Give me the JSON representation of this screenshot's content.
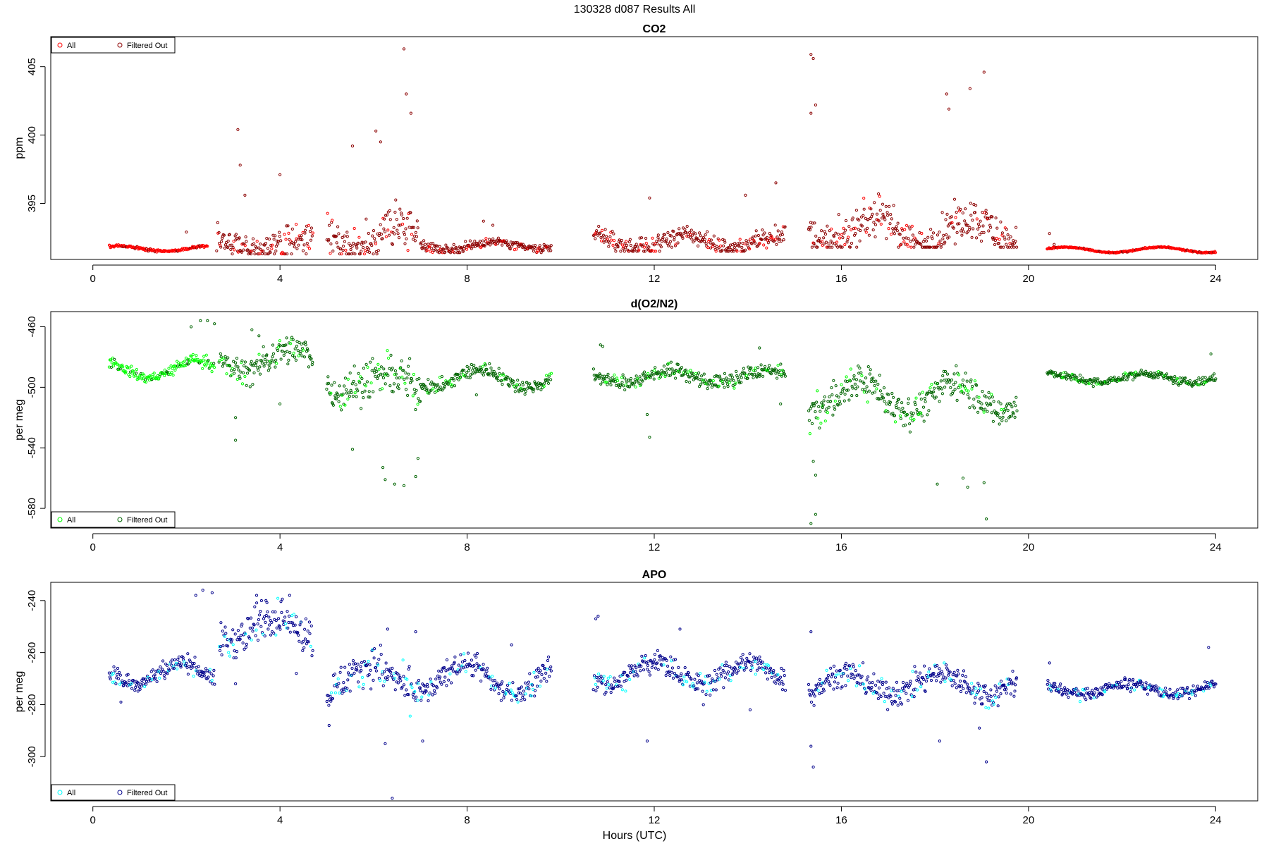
{
  "figure": {
    "title": "130328   d087   Results All",
    "xlabel": "Hours (UTC)"
  },
  "chart_data": [
    {
      "type": "scatter",
      "title": "CO2",
      "xlabel": "",
      "ylabel": "ppm",
      "xlim": [
        -0.9,
        24.9
      ],
      "ylim": [
        390.9,
        407.2
      ],
      "xticks": [
        0,
        4,
        8,
        12,
        16,
        20,
        24
      ],
      "yticks": [
        395,
        400,
        405
      ],
      "legend": {
        "position": "top-left",
        "entries": [
          "All",
          "Filtered Out"
        ]
      },
      "series": [
        {
          "name": "All",
          "color": "#ff0000",
          "marker": "open-circle"
        },
        {
          "name": "Filtered Out",
          "color": "#8b0000",
          "marker": "open-circle"
        }
      ],
      "segments": [
        {
          "x": [
            0.35,
            2.45
          ],
          "base": 391.7,
          "amp": 0.2,
          "spread": 0.3,
          "excursions": [
            [
              2.0,
              392.9
            ]
          ]
        },
        {
          "x": [
            2.65,
            4.7
          ],
          "base": 392.0,
          "amp": 0.5,
          "spread": 3.2,
          "excursions": [
            [
              3.1,
              400.4
            ],
            [
              3.15,
              397.8
            ],
            [
              4.0,
              397.1
            ],
            [
              3.25,
              395.6
            ]
          ]
        },
        {
          "x": [
            5.0,
            6.95
          ],
          "base": 392.5,
          "amp": 1.0,
          "spread": 5.0,
          "excursions": [
            [
              6.65,
              406.3
            ],
            [
              6.7,
              403.0
            ],
            [
              6.8,
              401.6
            ],
            [
              6.05,
              400.3
            ],
            [
              6.15,
              399.5
            ],
            [
              5.55,
              399.2
            ]
          ]
        },
        {
          "x": [
            7.0,
            9.8
          ],
          "base": 391.9,
          "amp": 0.3,
          "spread": 1.1,
          "excursions": [
            [
              8.35,
              393.7
            ],
            [
              8.55,
              393.4
            ]
          ]
        },
        {
          "x": [
            10.7,
            14.8
          ],
          "base": 392.2,
          "amp": 0.5,
          "spread": 2.2,
          "excursions": [
            [
              11.9,
              395.4
            ],
            [
              14.6,
              396.5
            ],
            [
              13.95,
              395.6
            ]
          ]
        },
        {
          "x": [
            15.3,
            19.75
          ],
          "base": 393.0,
          "amp": 1.0,
          "spread": 4.2,
          "excursions": [
            [
              15.35,
              405.9
            ],
            [
              15.4,
              405.6
            ],
            [
              15.35,
              401.6
            ],
            [
              15.45,
              402.2
            ],
            [
              18.75,
              403.4
            ],
            [
              19.05,
              404.6
            ],
            [
              18.25,
              403.0
            ],
            [
              18.3,
              401.9
            ]
          ]
        },
        {
          "x": [
            20.4,
            24.0
          ],
          "base": 391.6,
          "amp": 0.2,
          "spread": 0.15,
          "excursions": [
            [
              20.45,
              392.8
            ],
            [
              20.55,
              392.0
            ]
          ]
        }
      ]
    },
    {
      "type": "scatter",
      "title": "d(O2/N2)",
      "xlabel": "",
      "ylabel": "per meg",
      "xlim": [
        -0.9,
        24.9
      ],
      "ylim": [
        -593,
        -450
      ],
      "xticks": [
        0,
        4,
        8,
        12,
        16,
        20,
        24
      ],
      "yticks": [
        -460,
        -500,
        -540,
        -580
      ],
      "legend": {
        "position": "bottom-left",
        "entries": [
          "All",
          "Filtered Out"
        ]
      },
      "series": [
        {
          "name": "All",
          "color": "#00ff00",
          "marker": "open-circle"
        },
        {
          "name": "Filtered Out",
          "color": "#006400",
          "marker": "open-circle"
        }
      ],
      "segments": [
        {
          "x": [
            0.35,
            2.6
          ],
          "base": -488,
          "amp": 6,
          "spread": 12,
          "excursions": [
            [
              2.3,
              -456
            ],
            [
              2.45,
              -456
            ],
            [
              2.6,
              -458
            ],
            [
              2.1,
              -460
            ]
          ]
        },
        {
          "x": [
            2.7,
            4.7
          ],
          "base": -482,
          "amp": 8,
          "spread": 28,
          "excursions": [
            [
              3.05,
              -535
            ],
            [
              3.05,
              -520
            ],
            [
              3.4,
              -462
            ],
            [
              3.55,
              -466
            ],
            [
              4.0,
              -511
            ]
          ]
        },
        {
          "x": [
            5.0,
            7.0
          ],
          "base": -497,
          "amp": 6,
          "spread": 40,
          "excursions": [
            [
              6.25,
              -561
            ],
            [
              6.45,
              -564
            ],
            [
              6.65,
              -565
            ],
            [
              6.9,
              -559
            ],
            [
              6.95,
              -547
            ],
            [
              5.55,
              -541
            ],
            [
              6.2,
              -553
            ]
          ]
        },
        {
          "x": [
            7.0,
            9.8
          ],
          "base": -494,
          "amp": 6,
          "spread": 14,
          "excursions": [
            [
              8.2,
              -505
            ]
          ]
        },
        {
          "x": [
            10.7,
            14.8
          ],
          "base": -493,
          "amp": 4,
          "spread": 15,
          "excursions": [
            [
              10.85,
              -472
            ],
            [
              10.9,
              -473
            ],
            [
              11.85,
              -518
            ],
            [
              11.9,
              -533
            ],
            [
              14.7,
              -511
            ],
            [
              14.25,
              -474
            ]
          ]
        },
        {
          "x": [
            15.3,
            19.75
          ],
          "base": -506,
          "amp": 10,
          "spread": 32,
          "excursions": [
            [
              15.35,
              -590
            ],
            [
              15.45,
              -584
            ],
            [
              15.45,
              -558
            ],
            [
              15.4,
              -549
            ],
            [
              18.05,
              -564
            ],
            [
              18.6,
              -560
            ],
            [
              18.7,
              -566
            ],
            [
              19.05,
              -563
            ],
            [
              19.1,
              -587
            ]
          ]
        },
        {
          "x": [
            20.4,
            24.0
          ],
          "base": -494,
          "amp": 3,
          "spread": 8,
          "excursions": [
            [
              23.9,
              -478
            ]
          ]
        }
      ]
    },
    {
      "type": "scatter",
      "title": "APO",
      "xlabel": "Hours (UTC)",
      "ylabel": "per meg",
      "xlim": [
        -0.9,
        24.9
      ],
      "ylim": [
        -317,
        -233
      ],
      "xticks": [
        0,
        4,
        8,
        12,
        16,
        20,
        24
      ],
      "yticks": [
        -240,
        -260,
        -280,
        -300
      ],
      "legend": {
        "position": "bottom-left",
        "entries": [
          "All",
          "Filtered Out"
        ]
      },
      "series": [
        {
          "name": "All",
          "color": "#00ffff",
          "marker": "open-circle"
        },
        {
          "name": "Filtered Out",
          "color": "#00008b",
          "marker": "open-circle"
        }
      ],
      "segments": [
        {
          "x": [
            0.35,
            2.6
          ],
          "base": -268,
          "amp": 4,
          "spread": 10,
          "excursions": [
            [
              2.2,
              -238
            ],
            [
              2.35,
              -236
            ],
            [
              2.55,
              -237
            ],
            [
              0.6,
              -279
            ]
          ]
        },
        {
          "x": [
            2.7,
            4.7
          ],
          "base": -251,
          "amp": 5,
          "spread": 22,
          "excursions": [
            [
              3.05,
              -272
            ],
            [
              3.5,
              -238
            ],
            [
              3.7,
              -240
            ],
            [
              4.35,
              -268
            ]
          ]
        },
        {
          "x": [
            5.0,
            7.0
          ],
          "base": -270,
          "amp": 5,
          "spread": 22,
          "excursions": [
            [
              6.4,
              -316
            ],
            [
              6.25,
              -295
            ],
            [
              5.05,
              -288
            ],
            [
              6.3,
              -251
            ],
            [
              6.9,
              -252
            ]
          ]
        },
        {
          "x": [
            7.0,
            9.8
          ],
          "base": -270,
          "amp": 6,
          "spread": 14,
          "excursions": [
            [
              7.05,
              -294
            ],
            [
              8.95,
              -257
            ]
          ]
        },
        {
          "x": [
            10.7,
            14.8
          ],
          "base": -268,
          "amp": 4,
          "spread": 14,
          "excursions": [
            [
              10.75,
              -247
            ],
            [
              10.8,
              -246
            ],
            [
              11.85,
              -294
            ],
            [
              12.55,
              -251
            ],
            [
              13.05,
              -280
            ],
            [
              14.05,
              -282
            ]
          ]
        },
        {
          "x": [
            15.3,
            19.75
          ],
          "base": -272,
          "amp": 4,
          "spread": 16,
          "excursions": [
            [
              15.35,
              -252
            ],
            [
              15.35,
              -296
            ],
            [
              15.4,
              -304
            ],
            [
              18.1,
              -294
            ],
            [
              19.1,
              -302
            ],
            [
              18.95,
              -289
            ]
          ]
        },
        {
          "x": [
            20.4,
            24.0
          ],
          "base": -274,
          "amp": 2,
          "spread": 7,
          "excursions": [
            [
              23.85,
              -258
            ],
            [
              20.45,
              -264
            ]
          ]
        }
      ]
    }
  ]
}
